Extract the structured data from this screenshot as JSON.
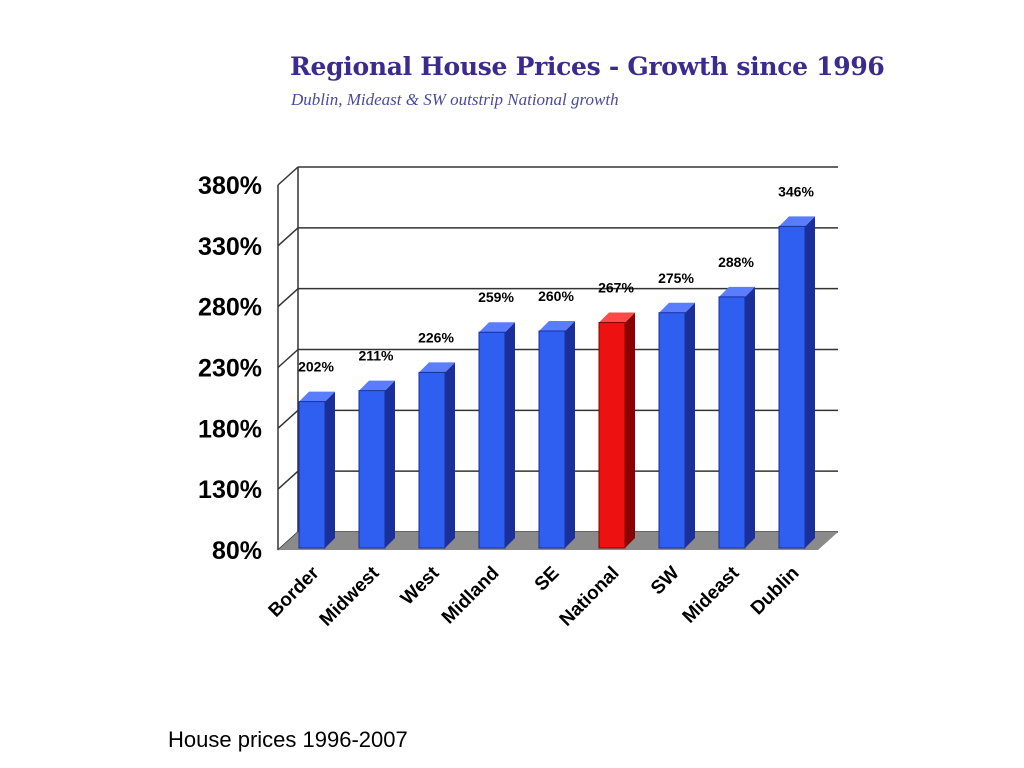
{
  "caption": "House prices 1996-2007",
  "colors": {
    "bar": "#2f5ff0",
    "bar_side": "#1a2f9a",
    "bar_top": "#5a7dff",
    "highlight": "#ee1111",
    "highlight_side": "#8a0000",
    "highlight_top": "#ff4a4a",
    "floor": "#8a8a8a",
    "title": "#3b2b8f"
  },
  "chart_data": {
    "type": "bar",
    "title": "Regional House Prices - Growth since 1996",
    "subtitle": "Dublin, Mideast & SW outstrip National growth",
    "categories": [
      "Border",
      "Midwest",
      "West",
      "Midland",
      "SE",
      "National",
      "SW",
      "Mideast",
      "Dublin"
    ],
    "values": [
      202,
      211,
      226,
      259,
      260,
      267,
      275,
      288,
      346
    ],
    "data_labels": [
      "202%",
      "211%",
      "226%",
      "259%",
      "260%",
      "267%",
      "275%",
      "288%",
      "346%"
    ],
    "highlight_category": "National",
    "ylim": [
      80,
      380
    ],
    "yticks": [
      80,
      130,
      180,
      230,
      280,
      330,
      380
    ],
    "ytick_labels": [
      "80%",
      "130%",
      "180%",
      "230%",
      "280%",
      "330%",
      "380%"
    ],
    "grid": true,
    "legend": "none",
    "xlabel": "",
    "ylabel": ""
  }
}
